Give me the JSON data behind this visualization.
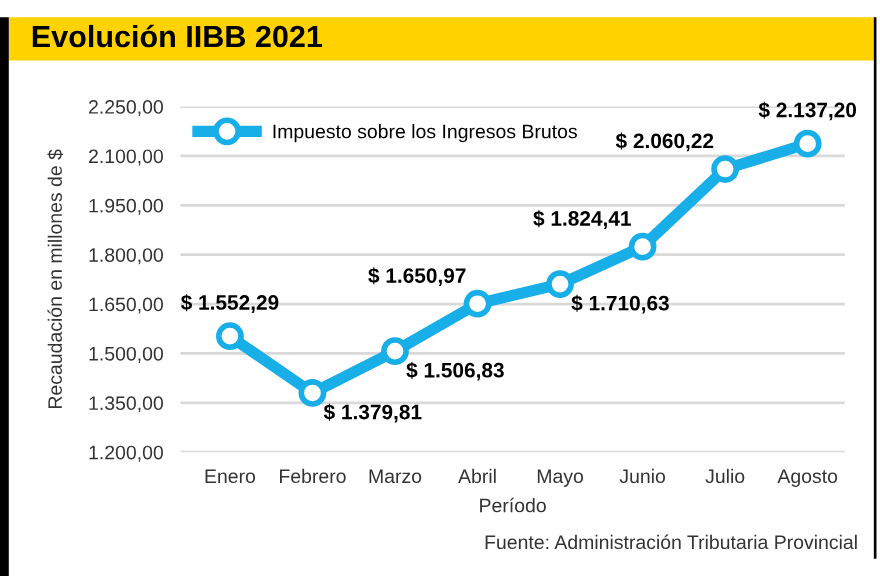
{
  "chart_data": {
    "type": "line",
    "title": "Evolución IIBB 2021",
    "xlabel": "Período",
    "ylabel": "Recaudación en millones de $",
    "categories": [
      "Enero",
      "Febrero",
      "Marzo",
      "Abril",
      "Mayo",
      "Junio",
      "Julio",
      "Agosto"
    ],
    "series": [
      {
        "name": "Impuesto sobre los Ingresos Brutos",
        "color": "#18aee8",
        "values": [
          1552.29,
          1379.81,
          1506.83,
          1650.97,
          1710.63,
          1824.41,
          2060.22,
          2137.2
        ],
        "value_labels": [
          "$ 1.552,29",
          "$ 1.379,81",
          "$ 1.506,83",
          "$ 1.650,97",
          "$ 1.710,63",
          "$ 1.824,41",
          "$ 2.060,22",
          "$ 2.137,20"
        ]
      }
    ],
    "ylim": [
      1200,
      2250
    ],
    "yticks": [
      {
        "value": 1200,
        "label": "1.200,00"
      },
      {
        "value": 1350,
        "label": "1.350,00"
      },
      {
        "value": 1500,
        "label": "1.500,00"
      },
      {
        "value": 1650,
        "label": "1.650,00"
      },
      {
        "value": 1800,
        "label": "1.800,00"
      },
      {
        "value": 1950,
        "label": "1.950,00"
      },
      {
        "value": 2100,
        "label": "2.100,00"
      },
      {
        "value": 2250,
        "label": "2.250,00"
      }
    ],
    "grid": "y",
    "legend": "top left",
    "marker": "circle",
    "line_style": "solid",
    "annotations": [
      "Fuente: Administración Tributaria Provincial"
    ]
  }
}
